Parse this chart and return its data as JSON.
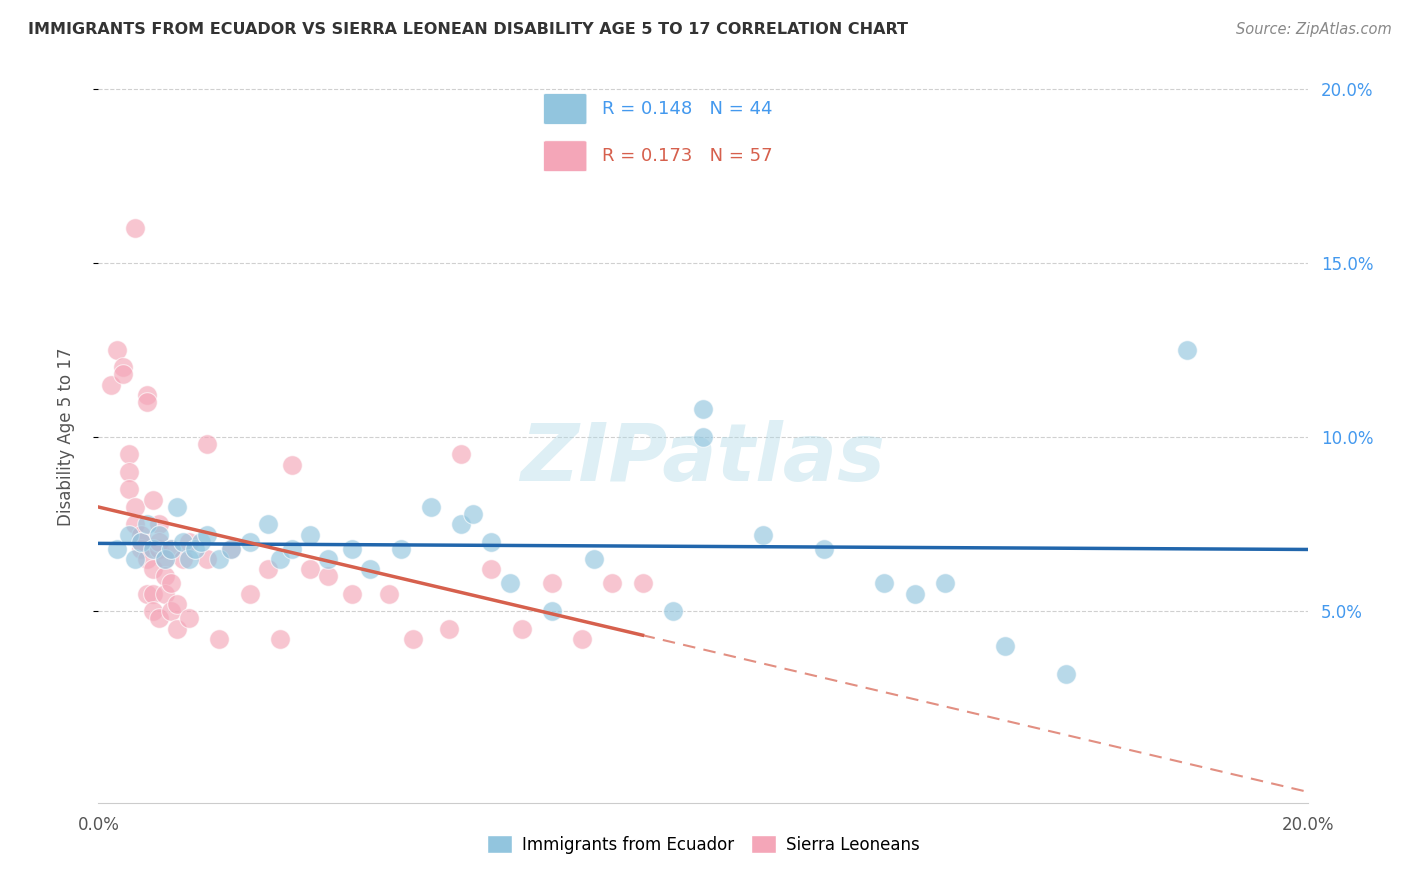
{
  "title": "IMMIGRANTS FROM ECUADOR VS SIERRA LEONEAN DISABILITY AGE 5 TO 17 CORRELATION CHART",
  "source": "Source: ZipAtlas.com",
  "ylabel": "Disability Age 5 to 17",
  "xlim": [
    0.0,
    0.2
  ],
  "ylim": [
    0.0,
    0.2
  ],
  "yticks": [
    0.05,
    0.1,
    0.15,
    0.2
  ],
  "ytick_labels": [
    "5.0%",
    "10.0%",
    "15.0%",
    "20.0%"
  ],
  "legend1_label": "Immigrants from Ecuador",
  "legend2_label": "Sierra Leoneans",
  "r1": "0.148",
  "n1": "44",
  "r2": "0.173",
  "n2": "57",
  "blue_color": "#92c5de",
  "pink_color": "#f4a6b8",
  "blue_line_color": "#2166ac",
  "pink_line_color": "#d6604d",
  "blue_scatter": [
    [
      0.003,
      0.068
    ],
    [
      0.005,
      0.072
    ],
    [
      0.006,
      0.065
    ],
    [
      0.007,
      0.07
    ],
    [
      0.008,
      0.075
    ],
    [
      0.009,
      0.068
    ],
    [
      0.01,
      0.072
    ],
    [
      0.011,
      0.065
    ],
    [
      0.012,
      0.068
    ],
    [
      0.013,
      0.08
    ],
    [
      0.014,
      0.07
    ],
    [
      0.015,
      0.065
    ],
    [
      0.016,
      0.068
    ],
    [
      0.017,
      0.07
    ],
    [
      0.018,
      0.072
    ],
    [
      0.02,
      0.065
    ],
    [
      0.022,
      0.068
    ],
    [
      0.025,
      0.07
    ],
    [
      0.028,
      0.075
    ],
    [
      0.03,
      0.065
    ],
    [
      0.032,
      0.068
    ],
    [
      0.035,
      0.072
    ],
    [
      0.038,
      0.065
    ],
    [
      0.042,
      0.068
    ],
    [
      0.045,
      0.062
    ],
    [
      0.05,
      0.068
    ],
    [
      0.055,
      0.08
    ],
    [
      0.06,
      0.075
    ],
    [
      0.062,
      0.078
    ],
    [
      0.065,
      0.07
    ],
    [
      0.068,
      0.058
    ],
    [
      0.075,
      0.05
    ],
    [
      0.082,
      0.065
    ],
    [
      0.095,
      0.05
    ],
    [
      0.1,
      0.108
    ],
    [
      0.1,
      0.1
    ],
    [
      0.11,
      0.072
    ],
    [
      0.12,
      0.068
    ],
    [
      0.13,
      0.058
    ],
    [
      0.135,
      0.055
    ],
    [
      0.14,
      0.058
    ],
    [
      0.15,
      0.04
    ],
    [
      0.16,
      0.032
    ],
    [
      0.18,
      0.125
    ]
  ],
  "pink_scatter": [
    [
      0.002,
      0.115
    ],
    [
      0.003,
      0.125
    ],
    [
      0.004,
      0.12
    ],
    [
      0.004,
      0.118
    ],
    [
      0.005,
      0.095
    ],
    [
      0.005,
      0.09
    ],
    [
      0.005,
      0.085
    ],
    [
      0.006,
      0.08
    ],
    [
      0.006,
      0.075
    ],
    [
      0.006,
      0.16
    ],
    [
      0.007,
      0.072
    ],
    [
      0.007,
      0.068
    ],
    [
      0.007,
      0.07
    ],
    [
      0.008,
      0.112
    ],
    [
      0.008,
      0.11
    ],
    [
      0.008,
      0.065
    ],
    [
      0.008,
      0.055
    ],
    [
      0.009,
      0.062
    ],
    [
      0.009,
      0.082
    ],
    [
      0.009,
      0.055
    ],
    [
      0.009,
      0.05
    ],
    [
      0.01,
      0.068
    ],
    [
      0.01,
      0.048
    ],
    [
      0.01,
      0.075
    ],
    [
      0.01,
      0.07
    ],
    [
      0.011,
      0.065
    ],
    [
      0.011,
      0.06
    ],
    [
      0.011,
      0.055
    ],
    [
      0.012,
      0.05
    ],
    [
      0.012,
      0.068
    ],
    [
      0.012,
      0.058
    ],
    [
      0.013,
      0.045
    ],
    [
      0.013,
      0.052
    ],
    [
      0.014,
      0.065
    ],
    [
      0.015,
      0.07
    ],
    [
      0.015,
      0.048
    ],
    [
      0.018,
      0.098
    ],
    [
      0.018,
      0.065
    ],
    [
      0.02,
      0.042
    ],
    [
      0.022,
      0.068
    ],
    [
      0.025,
      0.055
    ],
    [
      0.028,
      0.062
    ],
    [
      0.03,
      0.042
    ],
    [
      0.032,
      0.092
    ],
    [
      0.035,
      0.062
    ],
    [
      0.038,
      0.06
    ],
    [
      0.042,
      0.055
    ],
    [
      0.048,
      0.055
    ],
    [
      0.052,
      0.042
    ],
    [
      0.058,
      0.045
    ],
    [
      0.06,
      0.095
    ],
    [
      0.065,
      0.062
    ],
    [
      0.07,
      0.045
    ],
    [
      0.075,
      0.058
    ],
    [
      0.08,
      0.042
    ],
    [
      0.085,
      0.058
    ],
    [
      0.09,
      0.058
    ]
  ],
  "watermark": "ZIPatlas",
  "background_color": "#ffffff",
  "grid_color": "#d0d0d0"
}
